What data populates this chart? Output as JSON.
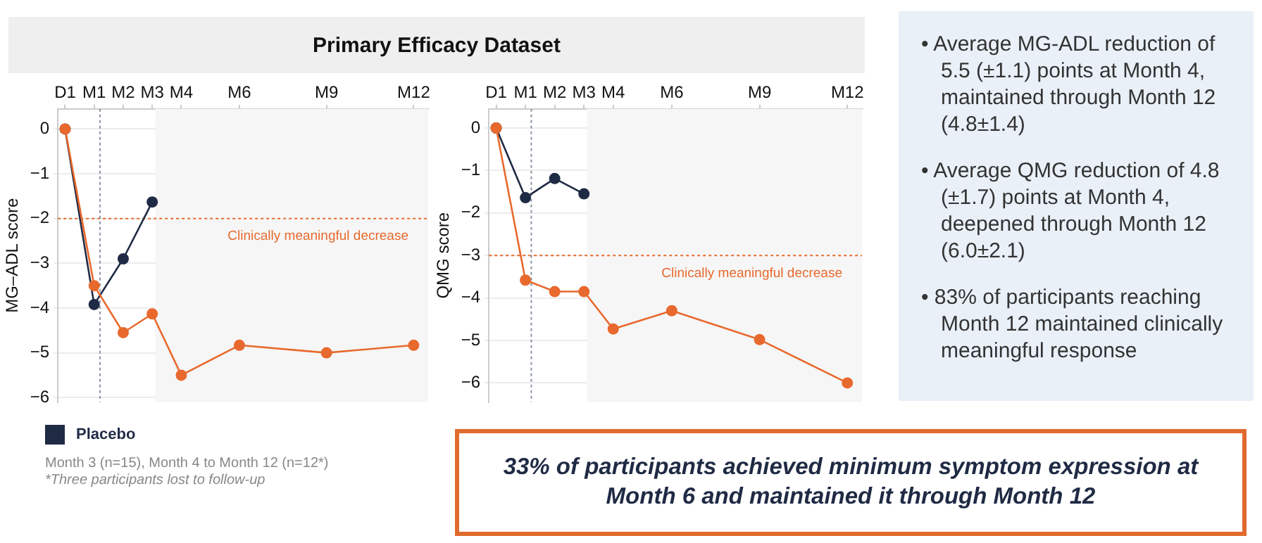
{
  "chart_data": [
    {
      "type": "line",
      "title": "Primary Efficacy Dataset",
      "ylabel": "MG–ADL score",
      "categories": [
        "D1",
        "M1",
        "M2",
        "M3",
        "M4",
        null,
        "M6",
        null,
        null,
        "M9",
        null,
        null,
        "M12"
      ],
      "series": [
        {
          "color": "#e8692d",
          "values": [
            0,
            -3.5,
            -4.55,
            -4.13,
            -5.5,
            null,
            -4.83,
            null,
            null,
            -5.0,
            null,
            null,
            -4.83
          ]
        },
        {
          "name": "Placebo",
          "color": "#1f2a44",
          "values": [
            0,
            -3.92,
            -2.9,
            -1.63,
            null,
            null,
            null,
            null,
            null,
            null,
            null,
            null,
            null
          ]
        }
      ],
      "ylim": [
        -6.1,
        0.45
      ],
      "yticks": [
        0,
        -1,
        -2,
        -3,
        -4,
        -5,
        -6
      ],
      "ref_lines": [
        {
          "axis": "y",
          "value": -2,
          "label": "Clinically meaningful decrease",
          "color": "#e8692d",
          "line_style": "dotted"
        },
        {
          "axis": "x",
          "value": "M1",
          "label": null,
          "color": "#8a93a6",
          "line_style": "dotted"
        }
      ],
      "bands": [
        {
          "axis": "x",
          "from": "M3",
          "to": "M12",
          "label": null,
          "color": "#f6f6f6"
        }
      ],
      "grid": "y",
      "marker": "circle",
      "line_style": "solid",
      "legend": "bottom left",
      "annotations": [
        "Month 3 (n=15), Month 4 to Month 12 (n=12*)",
        "*Three participants lost to follow-up"
      ]
    },
    {
      "type": "line",
      "ylabel": "QMG score",
      "categories": [
        "D1",
        "M1",
        "M2",
        "M3",
        "M4",
        null,
        "M6",
        null,
        null,
        "M9",
        null,
        null,
        "M12"
      ],
      "series": [
        {
          "color": "#e8692d",
          "values": [
            0,
            -3.58,
            -3.85,
            -3.85,
            -4.73,
            null,
            -4.3,
            null,
            null,
            -4.98,
            null,
            null,
            -6.0
          ]
        },
        {
          "color": "#1f2a44",
          "values": [
            0,
            -1.64,
            -1.19,
            -1.55,
            null,
            null,
            null,
            null,
            null,
            null,
            null,
            null,
            null
          ]
        }
      ],
      "ylim": [
        -6.45,
        0.45
      ],
      "yticks": [
        0,
        -1,
        -2,
        -3,
        -4,
        -5,
        -6
      ],
      "ref_lines": [
        {
          "axis": "y",
          "value": -3,
          "label": "Clinically meaningful decrease",
          "color": "#e8692d",
          "line_style": "dotted"
        },
        {
          "axis": "x",
          "value": "M1",
          "label": null,
          "color": "#8a93a6",
          "line_style": "dotted"
        }
      ],
      "bands": [
        {
          "axis": "x",
          "from": "M3",
          "to": "M12",
          "label": null,
          "color": "#f6f6f6"
        }
      ],
      "grid": "y",
      "marker": "circle",
      "line_style": "solid"
    },
    {
      "type": "other",
      "annotations": [
        "• Average MG-ADL reduction of 5.5 (±1.1) points at Month 4, maintained through Month 12 (4.8±1.4)",
        "• Average QMG reduction of 4.8 (±1.7) points at Month 4, deepened through Month 12 (6.0±2.1)",
        "• 83% of participants reaching Month 12 maintained clinically meaningful response"
      ]
    },
    {
      "type": "other",
      "annotations": [
        "33% of participants achieved minimum symptom expression at Month 6 and maintained it through Month 12"
      ]
    }
  ]
}
